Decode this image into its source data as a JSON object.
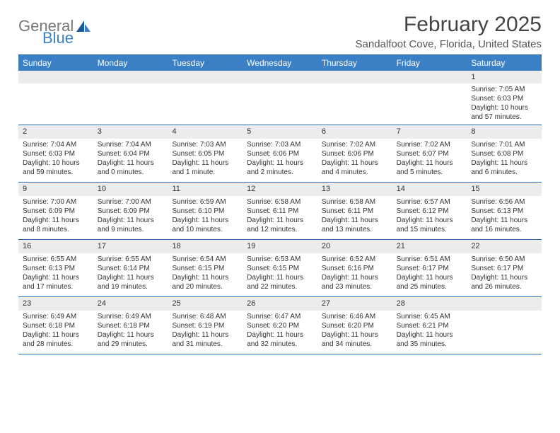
{
  "brand": {
    "part1": "General",
    "part2": "Blue"
  },
  "title": "February 2025",
  "location": "Sandalfoot Cove, Florida, United States",
  "dayNames": [
    "Sunday",
    "Monday",
    "Tuesday",
    "Wednesday",
    "Thursday",
    "Friday",
    "Saturday"
  ],
  "colors": {
    "header_bg": "#3b7fc4",
    "border": "#2a6cb0",
    "daynum_bg": "#ececec"
  },
  "weeks": [
    [
      null,
      null,
      null,
      null,
      null,
      null,
      {
        "n": "1",
        "sr": "Sunrise: 7:05 AM",
        "ss": "Sunset: 6:03 PM",
        "dl1": "Daylight: 10 hours",
        "dl2": "and 57 minutes."
      }
    ],
    [
      {
        "n": "2",
        "sr": "Sunrise: 7:04 AM",
        "ss": "Sunset: 6:03 PM",
        "dl1": "Daylight: 10 hours",
        "dl2": "and 59 minutes."
      },
      {
        "n": "3",
        "sr": "Sunrise: 7:04 AM",
        "ss": "Sunset: 6:04 PM",
        "dl1": "Daylight: 11 hours",
        "dl2": "and 0 minutes."
      },
      {
        "n": "4",
        "sr": "Sunrise: 7:03 AM",
        "ss": "Sunset: 6:05 PM",
        "dl1": "Daylight: 11 hours",
        "dl2": "and 1 minute."
      },
      {
        "n": "5",
        "sr": "Sunrise: 7:03 AM",
        "ss": "Sunset: 6:06 PM",
        "dl1": "Daylight: 11 hours",
        "dl2": "and 2 minutes."
      },
      {
        "n": "6",
        "sr": "Sunrise: 7:02 AM",
        "ss": "Sunset: 6:06 PM",
        "dl1": "Daylight: 11 hours",
        "dl2": "and 4 minutes."
      },
      {
        "n": "7",
        "sr": "Sunrise: 7:02 AM",
        "ss": "Sunset: 6:07 PM",
        "dl1": "Daylight: 11 hours",
        "dl2": "and 5 minutes."
      },
      {
        "n": "8",
        "sr": "Sunrise: 7:01 AM",
        "ss": "Sunset: 6:08 PM",
        "dl1": "Daylight: 11 hours",
        "dl2": "and 6 minutes."
      }
    ],
    [
      {
        "n": "9",
        "sr": "Sunrise: 7:00 AM",
        "ss": "Sunset: 6:09 PM",
        "dl1": "Daylight: 11 hours",
        "dl2": "and 8 minutes."
      },
      {
        "n": "10",
        "sr": "Sunrise: 7:00 AM",
        "ss": "Sunset: 6:09 PM",
        "dl1": "Daylight: 11 hours",
        "dl2": "and 9 minutes."
      },
      {
        "n": "11",
        "sr": "Sunrise: 6:59 AM",
        "ss": "Sunset: 6:10 PM",
        "dl1": "Daylight: 11 hours",
        "dl2": "and 10 minutes."
      },
      {
        "n": "12",
        "sr": "Sunrise: 6:58 AM",
        "ss": "Sunset: 6:11 PM",
        "dl1": "Daylight: 11 hours",
        "dl2": "and 12 minutes."
      },
      {
        "n": "13",
        "sr": "Sunrise: 6:58 AM",
        "ss": "Sunset: 6:11 PM",
        "dl1": "Daylight: 11 hours",
        "dl2": "and 13 minutes."
      },
      {
        "n": "14",
        "sr": "Sunrise: 6:57 AM",
        "ss": "Sunset: 6:12 PM",
        "dl1": "Daylight: 11 hours",
        "dl2": "and 15 minutes."
      },
      {
        "n": "15",
        "sr": "Sunrise: 6:56 AM",
        "ss": "Sunset: 6:13 PM",
        "dl1": "Daylight: 11 hours",
        "dl2": "and 16 minutes."
      }
    ],
    [
      {
        "n": "16",
        "sr": "Sunrise: 6:55 AM",
        "ss": "Sunset: 6:13 PM",
        "dl1": "Daylight: 11 hours",
        "dl2": "and 17 minutes."
      },
      {
        "n": "17",
        "sr": "Sunrise: 6:55 AM",
        "ss": "Sunset: 6:14 PM",
        "dl1": "Daylight: 11 hours",
        "dl2": "and 19 minutes."
      },
      {
        "n": "18",
        "sr": "Sunrise: 6:54 AM",
        "ss": "Sunset: 6:15 PM",
        "dl1": "Daylight: 11 hours",
        "dl2": "and 20 minutes."
      },
      {
        "n": "19",
        "sr": "Sunrise: 6:53 AM",
        "ss": "Sunset: 6:15 PM",
        "dl1": "Daylight: 11 hours",
        "dl2": "and 22 minutes."
      },
      {
        "n": "20",
        "sr": "Sunrise: 6:52 AM",
        "ss": "Sunset: 6:16 PM",
        "dl1": "Daylight: 11 hours",
        "dl2": "and 23 minutes."
      },
      {
        "n": "21",
        "sr": "Sunrise: 6:51 AM",
        "ss": "Sunset: 6:17 PM",
        "dl1": "Daylight: 11 hours",
        "dl2": "and 25 minutes."
      },
      {
        "n": "22",
        "sr": "Sunrise: 6:50 AM",
        "ss": "Sunset: 6:17 PM",
        "dl1": "Daylight: 11 hours",
        "dl2": "and 26 minutes."
      }
    ],
    [
      {
        "n": "23",
        "sr": "Sunrise: 6:49 AM",
        "ss": "Sunset: 6:18 PM",
        "dl1": "Daylight: 11 hours",
        "dl2": "and 28 minutes."
      },
      {
        "n": "24",
        "sr": "Sunrise: 6:49 AM",
        "ss": "Sunset: 6:18 PM",
        "dl1": "Daylight: 11 hours",
        "dl2": "and 29 minutes."
      },
      {
        "n": "25",
        "sr": "Sunrise: 6:48 AM",
        "ss": "Sunset: 6:19 PM",
        "dl1": "Daylight: 11 hours",
        "dl2": "and 31 minutes."
      },
      {
        "n": "26",
        "sr": "Sunrise: 6:47 AM",
        "ss": "Sunset: 6:20 PM",
        "dl1": "Daylight: 11 hours",
        "dl2": "and 32 minutes."
      },
      {
        "n": "27",
        "sr": "Sunrise: 6:46 AM",
        "ss": "Sunset: 6:20 PM",
        "dl1": "Daylight: 11 hours",
        "dl2": "and 34 minutes."
      },
      {
        "n": "28",
        "sr": "Sunrise: 6:45 AM",
        "ss": "Sunset: 6:21 PM",
        "dl1": "Daylight: 11 hours",
        "dl2": "and 35 minutes."
      },
      null
    ]
  ]
}
